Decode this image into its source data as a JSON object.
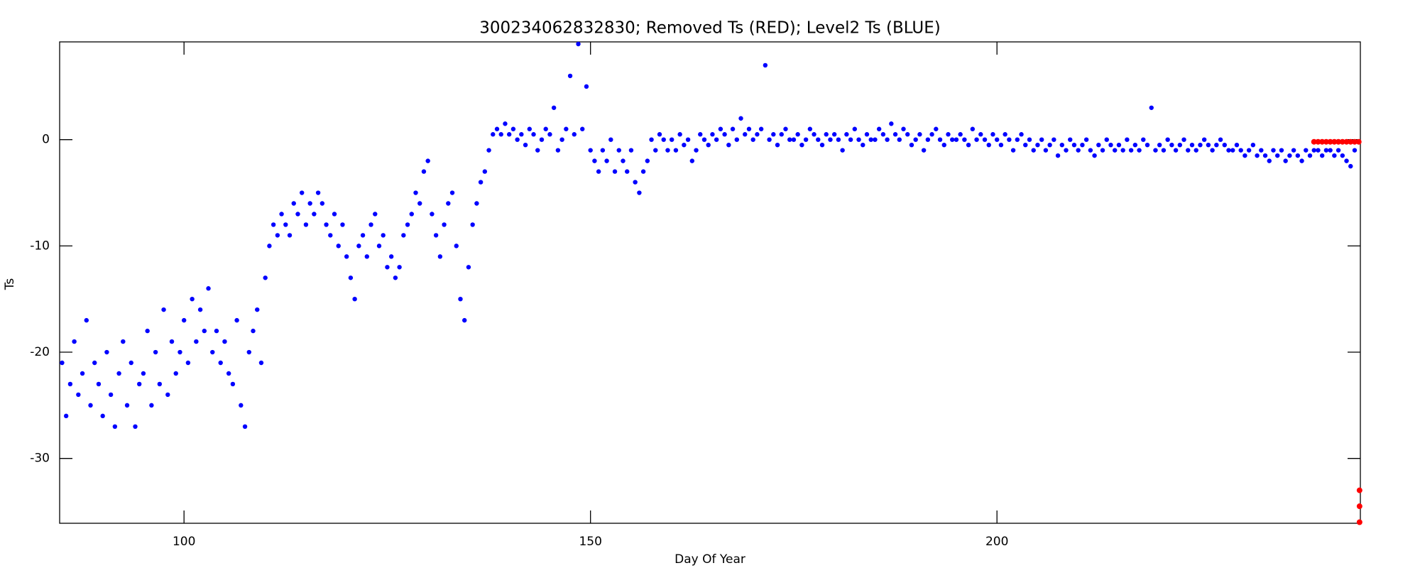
{
  "chart_data": {
    "type": "scatter",
    "title": "300234062832830; Removed Ts (RED); Level2 Ts (BLUE)",
    "x_label": "Day Of Year",
    "y_label": "Ts",
    "xlim": [
      84.7,
      244.7
    ],
    "ylim": [
      -36.1,
      9.2
    ],
    "xticks": [
      100,
      150,
      200
    ],
    "yticks": [
      -30,
      -20,
      -10,
      0
    ],
    "series": [
      {
        "color": "#0000ff",
        "x": [
          85,
          85.5,
          86,
          86.5,
          87,
          87.5,
          88,
          88.5,
          89,
          89.5,
          90,
          90.5,
          91,
          91.5,
          92,
          92.5,
          93,
          93.5,
          94,
          94.5,
          95,
          95.5,
          96,
          96.5,
          97,
          97.5,
          98,
          98.5,
          99,
          99.5,
          100,
          100.5,
          101,
          101.5,
          102,
          102.5,
          103,
          103.5,
          104,
          104.5,
          105,
          105.5,
          106,
          106.5,
          107,
          107.5,
          108,
          108.5,
          109,
          109.5,
          110,
          110.5,
          111,
          111.5,
          112,
          112.5,
          113,
          113.5,
          114,
          114.5,
          115,
          115.5,
          116,
          116.5,
          117,
          117.5,
          118,
          118.5,
          119,
          119.5,
          120,
          120.5,
          121,
          121.5,
          122,
          122.5,
          123,
          123.5,
          124,
          124.5,
          125,
          125.5,
          126,
          126.5,
          127,
          127.5,
          128,
          128.5,
          129,
          129.5,
          130,
          130.5,
          131,
          131.5,
          132,
          132.5,
          133,
          133.5,
          134,
          134.5,
          135,
          135.5,
          136,
          136.5,
          137,
          137.5,
          138,
          138.5,
          139,
          139.5,
          140,
          140.5,
          141,
          141.5,
          142,
          142.5,
          143,
          143.5,
          144,
          144.5,
          145,
          145.5,
          146,
          146.5,
          147,
          147.5,
          148,
          148.5,
          149,
          149.5,
          150,
          150.5,
          151,
          151.5,
          152,
          152.5,
          153,
          153.5,
          154,
          154.5,
          155,
          155.5,
          156,
          156.5,
          157,
          157.5,
          158,
          158.5,
          159,
          159.5,
          160,
          160.5,
          161,
          161.5,
          162,
          162.5,
          163,
          163.5,
          164,
          164.5,
          165,
          165.5,
          166,
          166.5,
          167,
          167.5,
          168,
          168.5,
          169,
          169.5,
          170,
          170.5,
          171,
          171.5,
          172,
          172.5,
          173,
          173.5,
          174,
          174.5,
          175,
          175.5,
          176,
          176.5,
          177,
          177.5,
          178,
          178.5,
          179,
          179.5,
          180,
          180.5,
          181,
          181.5,
          182,
          182.5,
          183,
          183.5,
          184,
          184.5,
          185,
          185.5,
          186,
          186.5,
          187,
          187.5,
          188,
          188.5,
          189,
          189.5,
          190,
          190.5,
          191,
          191.5,
          192,
          192.5,
          193,
          193.5,
          194,
          194.5,
          195,
          195.5,
          196,
          196.5,
          197,
          197.5,
          198,
          198.5,
          199,
          199.5,
          200,
          200.5,
          201,
          201.5,
          202,
          202.5,
          203,
          203.5,
          204,
          204.5,
          205,
          205.5,
          206,
          206.5,
          207,
          207.5,
          208,
          208.5,
          209,
          209.5,
          210,
          210.5,
          211,
          211.5,
          212,
          212.5,
          213,
          213.5,
          214,
          214.5,
          215,
          215.5,
          216,
          216.5,
          217,
          217.5,
          218,
          218.5,
          219,
          219.5,
          220,
          220.5,
          221,
          221.5,
          222,
          222.5,
          223,
          223.5,
          224,
          224.5,
          225,
          225.5,
          226,
          226.5,
          227,
          227.5,
          228,
          228.5,
          229,
          229.5,
          230,
          230.5,
          231,
          231.5,
          232,
          232.5,
          233,
          233.5,
          234,
          234.5,
          235,
          235.5,
          236,
          236.5,
          237,
          237.5,
          238,
          238.5,
          239,
          239.5,
          240,
          240.5,
          241,
          241.5,
          242,
          242.5,
          243,
          243.5,
          244
        ],
        "values": [
          -21,
          -26,
          -23,
          -19,
          -24,
          -22,
          -17,
          -25,
          -21,
          -23,
          -26,
          -20,
          -24,
          -27,
          -22,
          -19,
          -25,
          -21,
          -27,
          -23,
          -22,
          -18,
          -25,
          -20,
          -23,
          -16,
          -24,
          -19,
          -22,
          -20,
          -17,
          -21,
          -15,
          -19,
          -16,
          -18,
          -14,
          -20,
          -18,
          -21,
          -19,
          -22,
          -23,
          -17,
          -25,
          -27,
          -20,
          -18,
          -16,
          -21,
          -13,
          -10,
          -8,
          -9,
          -7,
          -8,
          -9,
          -6,
          -7,
          -5,
          -8,
          -6,
          -7,
          -5,
          -6,
          -8,
          -9,
          -7,
          -10,
          -8,
          -11,
          -13,
          -15,
          -10,
          -9,
          -11,
          -8,
          -7,
          -10,
          -9,
          -12,
          -11,
          -13,
          -12,
          -9,
          -8,
          -7,
          -5,
          -6,
          -3,
          -2,
          -7,
          -9,
          -11,
          -8,
          -6,
          -5,
          -10,
          -15,
          -17,
          -12,
          -8,
          -6,
          -4,
          -3,
          -1,
          0.5,
          1,
          0.5,
          1.5,
          0.5,
          1,
          0,
          0.5,
          -0.5,
          1,
          0.5,
          -1,
          0,
          1,
          0.5,
          3,
          -1,
          0,
          1,
          6,
          0.5,
          9,
          1,
          5,
          -1,
          -2,
          -3,
          -1,
          -2,
          0,
          -3,
          -1,
          -2,
          -3,
          -1,
          -4,
          -5,
          -3,
          -2,
          0,
          -1,
          0.5,
          0,
          -1,
          0,
          -1,
          0.5,
          -0.5,
          0,
          -2,
          -1,
          0.5,
          0,
          -0.5,
          0.5,
          0,
          1,
          0.5,
          -0.5,
          1,
          0,
          2,
          0.5,
          1,
          0,
          0.5,
          1,
          7,
          0,
          0.5,
          -0.5,
          0.5,
          1,
          0,
          0,
          0.5,
          -0.5,
          0,
          1,
          0.5,
          0,
          -0.5,
          0.5,
          0,
          0.5,
          0,
          -1,
          0.5,
          0,
          1,
          0,
          -0.5,
          0.5,
          0,
          0,
          1,
          0.5,
          0,
          1.5,
          0.5,
          0,
          1,
          0.5,
          -0.5,
          0,
          0.5,
          -1,
          0,
          0.5,
          1,
          0,
          -0.5,
          0.5,
          0,
          0,
          0.5,
          0,
          -0.5,
          1,
          0,
          0.5,
          0,
          -0.5,
          0.5,
          0,
          -0.5,
          0.5,
          0,
          -1,
          0,
          0.5,
          -0.5,
          0,
          -1,
          -0.5,
          0,
          -1,
          -0.5,
          0,
          -1.5,
          -0.5,
          -1,
          0,
          -0.5,
          -1,
          -0.5,
          0,
          -1,
          -1.5,
          -0.5,
          -1,
          0,
          -0.5,
          -1,
          -0.5,
          -1,
          0,
          -1,
          -0.5,
          -1,
          0,
          -0.5,
          3,
          -1,
          -0.5,
          -1,
          0,
          -0.5,
          -1,
          -0.5,
          0,
          -1,
          -0.5,
          -1,
          -0.5,
          0,
          -0.5,
          -1,
          -0.5,
          0,
          -0.5,
          -1,
          -1,
          -0.5,
          -1,
          -1.5,
          -1,
          -0.5,
          -1.5,
          -1,
          -1.5,
          -2,
          -1,
          -1.5,
          -1,
          -2,
          -1.5,
          -1,
          -1.5,
          -2,
          -1,
          -1.5,
          -1,
          -1,
          -1.5,
          -1,
          -1,
          -1.5,
          -1,
          -1.5,
          -2,
          -2.5,
          -1
        ]
      },
      {
        "color": "#ff0000",
        "x": [
          239,
          239.5,
          240,
          240.5,
          241,
          241.5,
          242,
          242.5,
          243,
          243.5,
          244,
          244.5,
          244.6,
          244.6,
          244.6
        ],
        "values": [
          -0.2,
          -0.2,
          -0.2,
          -0.2,
          -0.2,
          -0.2,
          -0.2,
          -0.2,
          -0.2,
          -0.2,
          -0.2,
          -0.2,
          -33,
          -34.5,
          -36
        ]
      }
    ]
  }
}
